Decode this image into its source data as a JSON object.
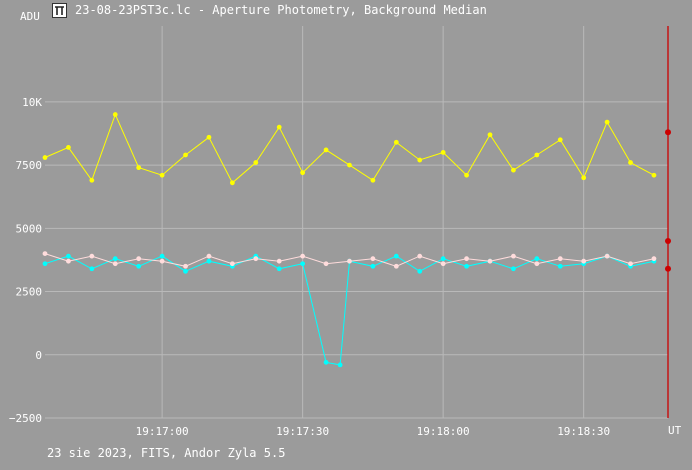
{
  "window": {
    "title": "23-08-23PST3c.lc - Aperture Photometry, Background Median",
    "icon": "pi-logo-icon"
  },
  "footer": {
    "caption": "23 sie 2023, FITS, Andor Zyla 5.5"
  },
  "colors": {
    "background": "#9b9b9b",
    "grid": "#b9b9b9",
    "yellow_series": "#ffff00",
    "cyan_series": "#00ffff",
    "pink_series": "#ffdcdc",
    "cursor": "#cc0000"
  },
  "chart_data": {
    "type": "line",
    "ylabel": "ADU",
    "xlabel": "UT",
    "ylim": [
      -2500,
      13000
    ],
    "xlim": [
      "19:16:35",
      "19:18:48"
    ],
    "grid": true,
    "y_ticks": [
      {
        "value": -2500,
        "label": "−2500"
      },
      {
        "value": 0,
        "label": "0"
      },
      {
        "value": 2500,
        "label": "2500"
      },
      {
        "value": 5000,
        "label": "5000"
      },
      {
        "value": 7500,
        "label": "7500"
      },
      {
        "value": 10000,
        "label": "10K"
      }
    ],
    "x_ticks": [
      {
        "value": "19:17:00",
        "label": "19:17:00"
      },
      {
        "value": "19:17:30",
        "label": "19:17:30"
      },
      {
        "value": "19:18:00",
        "label": "19:18:00"
      },
      {
        "value": "19:18:30",
        "label": "19:18:30"
      }
    ],
    "cursor_time": "19:18:48",
    "cursor_values": [
      8800,
      4500,
      3400
    ],
    "series": [
      {
        "color": "#ffff00",
        "x": [
          "19:16:35",
          "19:16:40",
          "19:16:45",
          "19:16:50",
          "19:16:55",
          "19:17:00",
          "19:17:05",
          "19:17:10",
          "19:17:15",
          "19:17:20",
          "19:17:25",
          "19:17:30",
          "19:17:35",
          "19:17:40",
          "19:17:45",
          "19:17:50",
          "19:17:55",
          "19:18:00",
          "19:18:05",
          "19:18:10",
          "19:18:15",
          "19:18:20",
          "19:18:25",
          "19:18:30",
          "19:18:35",
          "19:18:40",
          "19:18:45"
        ],
        "values": [
          7800,
          8200,
          6900,
          9500,
          7400,
          7100,
          7900,
          8600,
          6800,
          7600,
          9000,
          7200,
          8100,
          7500,
          6900,
          8400,
          7700,
          8000,
          7100,
          8700,
          7300,
          7900,
          8500,
          7000,
          9200,
          7600,
          7100
        ]
      },
      {
        "color": "#00ffff",
        "x": [
          "19:16:35",
          "19:16:40",
          "19:16:45",
          "19:16:50",
          "19:16:55",
          "19:17:00",
          "19:17:05",
          "19:17:10",
          "19:17:15",
          "19:17:20",
          "19:17:25",
          "19:17:30",
          "19:17:35",
          "19:17:38",
          "19:17:40",
          "19:17:45",
          "19:17:50",
          "19:17:55",
          "19:18:00",
          "19:18:05",
          "19:18:10",
          "19:18:15",
          "19:18:20",
          "19:18:25",
          "19:18:30",
          "19:18:35",
          "19:18:40",
          "19:18:45"
        ],
        "values": [
          3600,
          3900,
          3400,
          3800,
          3500,
          3900,
          3300,
          3700,
          3500,
          3900,
          3400,
          3600,
          -300,
          -400,
          3700,
          3500,
          3900,
          3300,
          3800,
          3500,
          3700,
          3400,
          3800,
          3500,
          3600,
          3900,
          3500,
          3700
        ]
      },
      {
        "color": "#ffdcdc",
        "x": [
          "19:16:35",
          "19:16:40",
          "19:16:45",
          "19:16:50",
          "19:16:55",
          "19:17:00",
          "19:17:05",
          "19:17:10",
          "19:17:15",
          "19:17:20",
          "19:17:25",
          "19:17:30",
          "19:17:35",
          "19:17:40",
          "19:17:45",
          "19:17:50",
          "19:17:55",
          "19:18:00",
          "19:18:05",
          "19:18:10",
          "19:18:15",
          "19:18:20",
          "19:18:25",
          "19:18:30",
          "19:18:35",
          "19:18:40",
          "19:18:45"
        ],
        "values": [
          4000,
          3700,
          3900,
          3600,
          3800,
          3700,
          3500,
          3900,
          3600,
          3800,
          3700,
          3900,
          3600,
          3700,
          3800,
          3500,
          3900,
          3600,
          3800,
          3700,
          3900,
          3600,
          3800,
          3700,
          3900,
          3600,
          3800
        ]
      }
    ]
  }
}
